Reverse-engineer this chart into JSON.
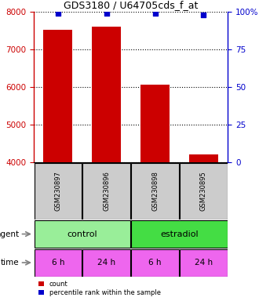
{
  "title": "GDS3180 / U64705cds_f_at",
  "samples": [
    "GSM230897",
    "GSM230896",
    "GSM230898",
    "GSM230895"
  ],
  "counts": [
    7530,
    7620,
    6070,
    4210
  ],
  "percentile_ranks": [
    99,
    99,
    99,
    98
  ],
  "ylim_left": [
    4000,
    8000
  ],
  "ylim_right": [
    0,
    100
  ],
  "yticks_left": [
    4000,
    5000,
    6000,
    7000,
    8000
  ],
  "yticks_right": [
    0,
    25,
    50,
    75,
    100
  ],
  "bar_color": "#cc0000",
  "dot_color": "#0000cc",
  "bar_width": 0.6,
  "agent_labels": [
    "control",
    "estradiol"
  ],
  "agent_color_control": "#99ee99",
  "agent_color_estradiol": "#44dd44",
  "time_labels": [
    "6 h",
    "24 h",
    "6 h",
    "24 h"
  ],
  "time_color": "#ee66ee",
  "sample_box_color": "#cccccc",
  "ylabel_left_color": "#cc0000",
  "ylabel_right_color": "#0000cc",
  "legend_count_color": "#cc0000",
  "legend_pct_color": "#0000cc"
}
